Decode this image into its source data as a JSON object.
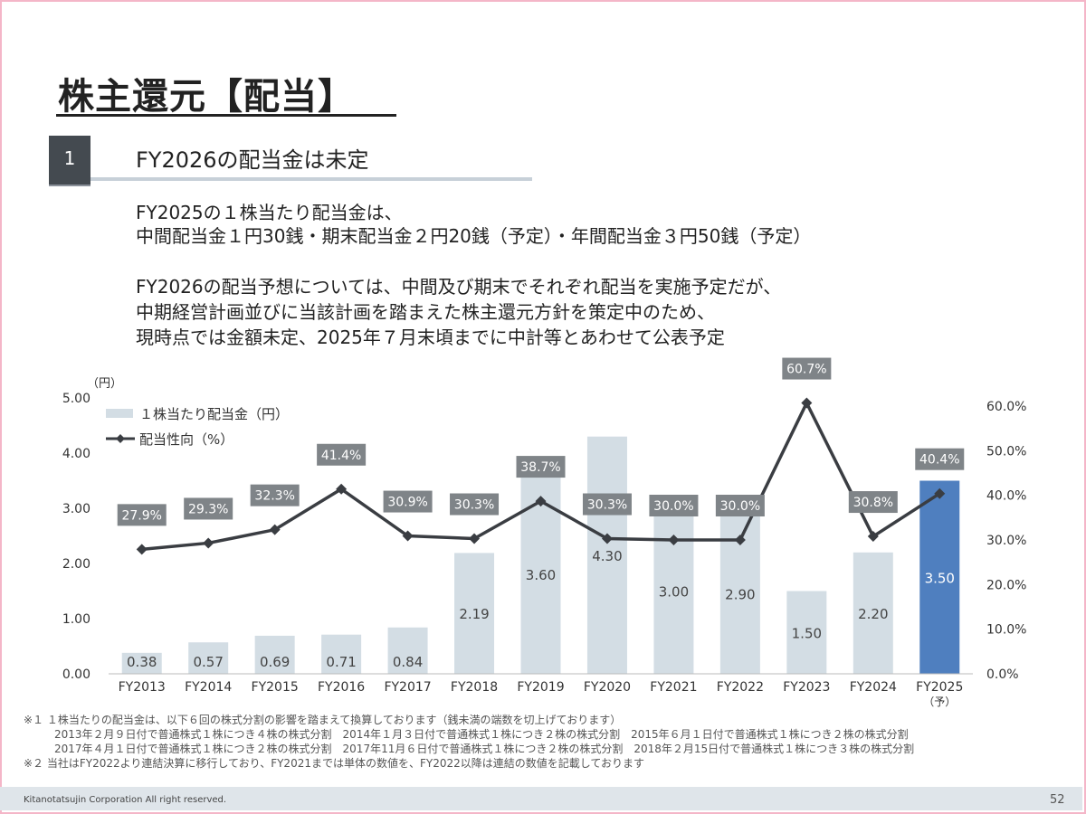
{
  "page": {
    "title": "株主還元【配当】",
    "section_number": "1",
    "section_heading": "FY2026の配当金は未定",
    "body_lines": [
      "FY2025の１株当たり配当金は、",
      "中間配当金１円30銭・期末配当金２円20銭（予定）・年間配当金３円50銭（予定）",
      "FY2026の配当予想については、中間及び期末でそれぞれ配当を実施予定だが、",
      "中期経営計画並びに当該計画を踏まえた株主還元方針を策定中のため、",
      "現時点では金額未定、2025年７月末頃までに中計等とあわせて公表予定"
    ],
    "notes": [
      "※１ １株当たりの配当金は、以下６回の株式分割の影響を踏まえて換算しております（銭未満の端数を切上げております）",
      "2013年２月９日付で普通株式１株につき４株の株式分割　2014年１月３日付で普通株式１株につき２株の株式分割　2015年６月１日付で普通株式１株につき２株の株式分割",
      "2017年４月１日付で普通株式１株につき２株の株式分割　2017年11月６日付で普通株式１株につき２株の株式分割　2018年２月15日付で普通株式１株につき３株の株式分割",
      "※２ 当社はFY2022より連結決算に移行しており、FY2021までは単体の数値を、FY2022以降は連結の数値を記載しております"
    ],
    "footer_left": "Kitanotatsujin Corporation All right reserved.",
    "page_number": "52"
  },
  "chart_data": {
    "type": "bar",
    "categories": [
      "FY2013",
      "FY2014",
      "FY2015",
      "FY2016",
      "FY2017",
      "FY2018",
      "FY2019",
      "FY2020",
      "FY2021",
      "FY2022",
      "FY2023",
      "FY2024",
      "FY2025"
    ],
    "category_sublabels": {
      "12": "（予）"
    },
    "series": [
      {
        "name": "１株当たり配当金（円）",
        "type": "bar",
        "axis": "left",
        "values": [
          0.38,
          0.57,
          0.69,
          0.71,
          0.84,
          2.19,
          3.6,
          4.3,
          3.0,
          2.9,
          1.5,
          2.2,
          3.5
        ],
        "labels": [
          "0.38",
          "0.57",
          "0.69",
          "0.71",
          "0.84",
          "2.19",
          "3.60",
          "4.30",
          "3.00",
          "2.90",
          "1.50",
          "2.20",
          "3.50"
        ],
        "color": "#d3dde4",
        "highlight_index": 12,
        "highlight_color": "#4f7fbf"
      },
      {
        "name": "配当性向（%）",
        "type": "line",
        "axis": "right",
        "values": [
          27.9,
          29.3,
          32.3,
          41.4,
          30.9,
          30.3,
          38.7,
          30.3,
          30.0,
          30.0,
          60.7,
          30.8,
          40.4
        ],
        "labels": [
          "27.9%",
          "29.3%",
          "32.3%",
          "41.4%",
          "30.9%",
          "30.3%",
          "38.7%",
          "30.3%",
          "30.0%",
          "30.0%",
          "60.7%",
          "30.8%",
          "40.4%"
        ],
        "color": "#3a3d42"
      }
    ],
    "y_left": {
      "unit_label": "（円）",
      "ylim": [
        0,
        5
      ],
      "ticks": [
        "0.00",
        "1.00",
        "2.00",
        "3.00",
        "4.00",
        "5.00"
      ]
    },
    "y_right": {
      "ylim": [
        0,
        62
      ],
      "ticks": [
        "0.0%",
        "10.0%",
        "20.0%",
        "30.0%",
        "40.0%",
        "50.0%",
        "60.0%"
      ]
    },
    "legend": "top-left",
    "grid": false
  }
}
